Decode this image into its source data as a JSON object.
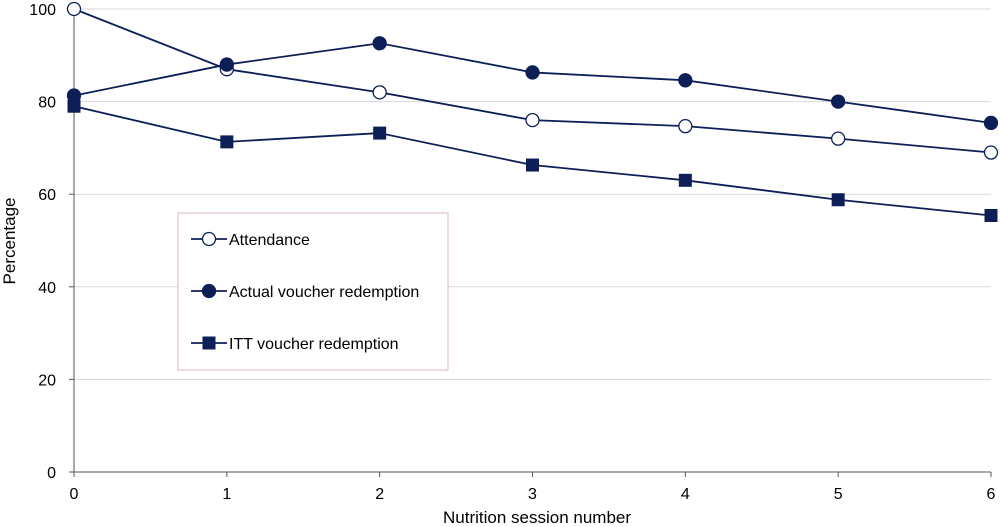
{
  "chart_data": {
    "type": "line",
    "xlabel": "Nutrition session number",
    "ylabel": "Percentage",
    "x": [
      0,
      1,
      2,
      3,
      4,
      5,
      6
    ],
    "xlim": [
      0,
      6
    ],
    "ylim": [
      0,
      100
    ],
    "x_ticks": [
      "0",
      "1",
      "2",
      "3",
      "4",
      "5",
      "6"
    ],
    "y_ticks": [
      "0",
      "20",
      "40",
      "60",
      "80",
      "100"
    ],
    "grid": "horizontal",
    "legend_position": "center-left",
    "series": [
      {
        "name": "Attendance",
        "marker": "open-circle",
        "color": "#0d1f56",
        "values": [
          100,
          87,
          82,
          76,
          74.7,
          72,
          69
        ]
      },
      {
        "name": "Actual voucher redemption",
        "marker": "filled-circle",
        "color": "#0d1f56",
        "values": [
          81.3,
          88,
          92.6,
          86.3,
          84.6,
          80,
          75.4
        ]
      },
      {
        "name": "ITT voucher redemption",
        "marker": "filled-square",
        "color": "#0d1f56",
        "values": [
          79,
          71.3,
          73.2,
          66.3,
          63,
          58.8,
          55.4
        ]
      }
    ]
  }
}
